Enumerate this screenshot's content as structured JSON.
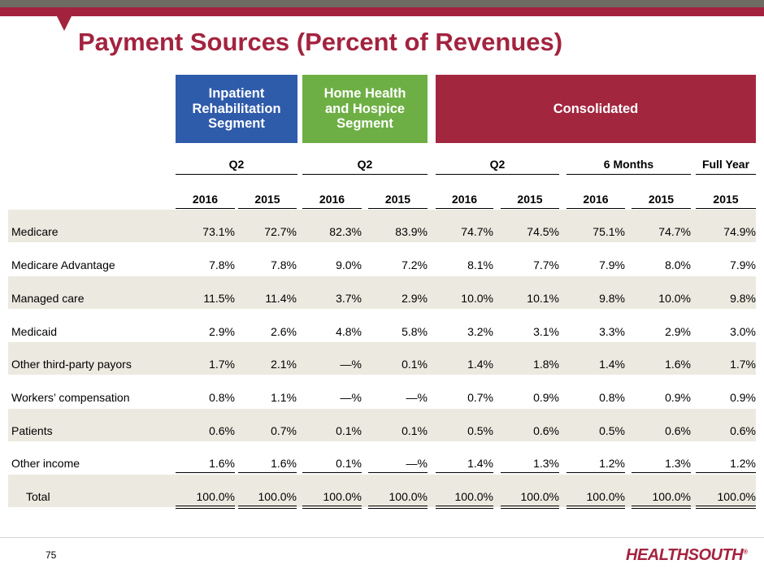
{
  "title": "Payment Sources (Percent of Revenues)",
  "page_number": "75",
  "logo_text": "HEALTHSOUTH",
  "colors": {
    "brand_red": "#a3233f",
    "inpatient_blue": "#2f5bab",
    "home_health_green": "#6eaf45",
    "band": "#ece9e0"
  },
  "segments": [
    {
      "label": "Inpatient Rehabilitation Segment",
      "lines": [
        "Inpatient",
        "Rehabilitation",
        "Segment"
      ]
    },
    {
      "label": "Home Health and Hospice Segment",
      "lines": [
        "Home Health",
        "and Hospice",
        "Segment"
      ]
    },
    {
      "label": "Consolidated",
      "lines": [
        "Consolidated"
      ]
    }
  ],
  "periods": [
    "Q2",
    "Q2",
    "Q2",
    "6 Months",
    "Full Year"
  ],
  "years": [
    "2016",
    "2015",
    "2016",
    "2015",
    "2016",
    "2015",
    "2016",
    "2015",
    "2015"
  ],
  "rows": [
    {
      "label": "Medicare",
      "values": [
        "73.1%",
        "72.7%",
        "82.3%",
        "83.9%",
        "74.7%",
        "74.5%",
        "75.1%",
        "74.7%",
        "74.9%"
      ]
    },
    {
      "label": "Medicare Advantage",
      "values": [
        "7.8%",
        "7.8%",
        "9.0%",
        "7.2%",
        "8.1%",
        "7.7%",
        "7.9%",
        "8.0%",
        "7.9%"
      ]
    },
    {
      "label": "Managed care",
      "values": [
        "11.5%",
        "11.4%",
        "3.7%",
        "2.9%",
        "10.0%",
        "10.1%",
        "9.8%",
        "10.0%",
        "9.8%"
      ]
    },
    {
      "label": "Medicaid",
      "values": [
        "2.9%",
        "2.6%",
        "4.8%",
        "5.8%",
        "3.2%",
        "3.1%",
        "3.3%",
        "2.9%",
        "3.0%"
      ]
    },
    {
      "label": "Other third-party payors",
      "values": [
        "1.7%",
        "2.1%",
        "—%",
        "0.1%",
        "1.4%",
        "1.8%",
        "1.4%",
        "1.6%",
        "1.7%"
      ]
    },
    {
      "label": "Workers’ compensation",
      "values": [
        "0.8%",
        "1.1%",
        "—%",
        "—%",
        "0.7%",
        "0.9%",
        "0.8%",
        "0.9%",
        "0.9%"
      ]
    },
    {
      "label": "Patients",
      "values": [
        "0.6%",
        "0.7%",
        "0.1%",
        "0.1%",
        "0.5%",
        "0.6%",
        "0.5%",
        "0.6%",
        "0.6%"
      ]
    },
    {
      "label": "Other income",
      "values": [
        "1.6%",
        "1.6%",
        "0.1%",
        "—%",
        "1.4%",
        "1.3%",
        "1.2%",
        "1.3%",
        "1.2%"
      ]
    },
    {
      "label": "Total",
      "values": [
        "100.0%",
        "100.0%",
        "100.0%",
        "100.0%",
        "100.0%",
        "100.0%",
        "100.0%",
        "100.0%",
        "100.0%"
      ]
    }
  ]
}
